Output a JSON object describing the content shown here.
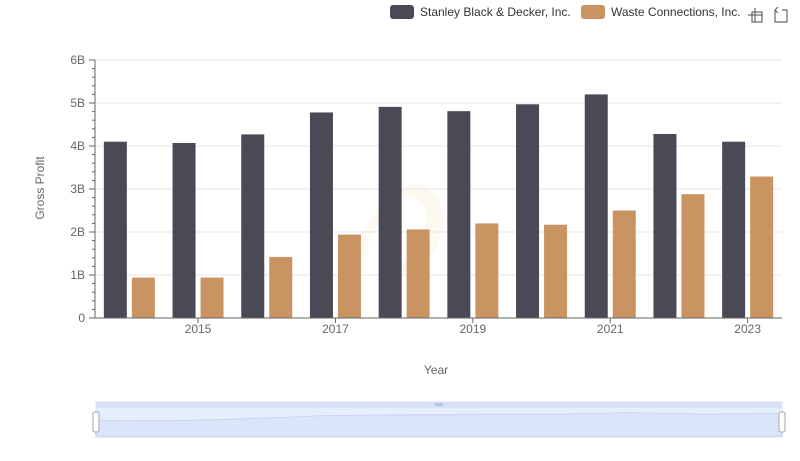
{
  "chart_data": {
    "type": "bar",
    "title": "",
    "xlabel": "Year",
    "ylabel": "Gross Profit",
    "categories": [
      "2014",
      "2015",
      "2016",
      "2017",
      "2018",
      "2019",
      "2020",
      "2021",
      "2022",
      "2023"
    ],
    "x_tick_labels": [
      "2015",
      "2017",
      "2019",
      "2021",
      "2023"
    ],
    "y_tick_labels": [
      "0",
      "1B",
      "2B",
      "3B",
      "4B",
      "5B",
      "6B"
    ],
    "ylim": [
      0,
      6000000000
    ],
    "grid": true,
    "legend_position": "top-right",
    "series": [
      {
        "name": "Stanley Black & Decker, Inc.",
        "color": "#4a4a57",
        "values": [
          4100000000,
          4070000000,
          4270000000,
          4780000000,
          4910000000,
          4810000000,
          4970000000,
          5200000000,
          4280000000,
          4100000000
        ]
      },
      {
        "name": "Waste Connections, Inc.",
        "color": "#c99461",
        "values": [
          940000000,
          940000000,
          1420000000,
          1940000000,
          2060000000,
          2200000000,
          2170000000,
          2500000000,
          2880000000,
          3290000000
        ]
      }
    ]
  },
  "toolbar": {
    "zoom_icon": "zoom-crosshair-icon",
    "reset_icon": "zoom-reset-icon"
  }
}
